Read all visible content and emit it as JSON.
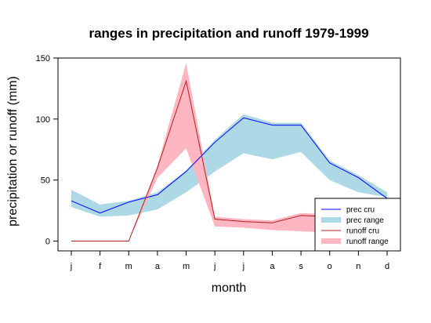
{
  "chart_data": {
    "type": "line",
    "title": "ranges in precipitation and runoff 1979-1999",
    "xlabel": "month",
    "ylabel": "precipitation or runoff (mm)",
    "categories": [
      "j",
      "f",
      "m",
      "a",
      "m",
      "j",
      "j",
      "a",
      "s",
      "o",
      "n",
      "d"
    ],
    "ylim": [
      -8,
      150
    ],
    "yticks": [
      0,
      50,
      100,
      150
    ],
    "grid": false,
    "legend_position": "bottom-right",
    "series": [
      {
        "name": "prec cru",
        "kind": "line",
        "color": "#0000FF",
        "values": [
          33,
          23,
          32,
          38,
          57,
          81,
          101,
          95,
          95,
          64,
          52,
          35
        ]
      },
      {
        "name": "prec range",
        "kind": "band",
        "color": "#ADD8E6",
        "lower": [
          28,
          20,
          21,
          26,
          40,
          57,
          72,
          67,
          73,
          50,
          40,
          36
        ],
        "upper": [
          42,
          30,
          33,
          40,
          58,
          83,
          104,
          97,
          97,
          66,
          54,
          40
        ]
      },
      {
        "name": "runoff cru",
        "kind": "line",
        "color": "#B22222",
        "values": [
          0,
          0,
          0,
          60,
          131,
          18,
          16,
          15,
          21,
          20,
          19,
          19
        ]
      },
      {
        "name": "runoff range",
        "kind": "band",
        "color": "#FFB6C1",
        "lower": [
          0,
          0,
          0,
          52,
          76,
          12,
          11,
          9,
          8,
          7,
          6,
          6
        ],
        "upper": [
          0,
          0,
          0,
          62,
          146,
          20,
          18,
          17,
          23,
          22,
          21,
          21
        ]
      }
    ]
  }
}
